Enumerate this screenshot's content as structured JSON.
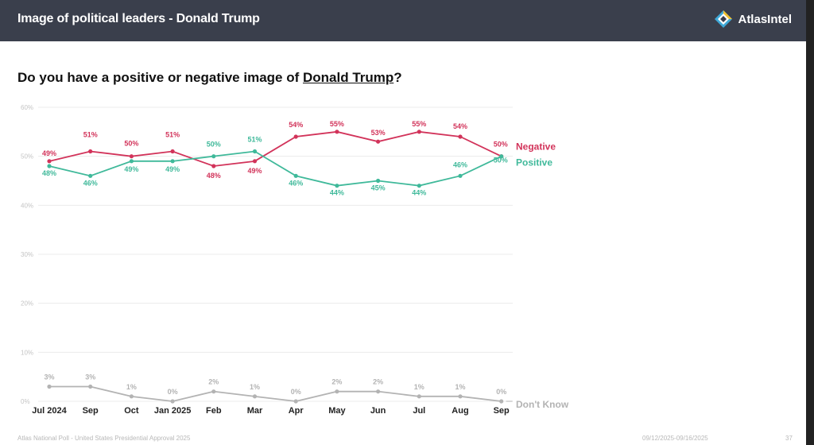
{
  "header": {
    "title": "Image of political leaders - Donald Trump"
  },
  "brand": {
    "name": "AtlasIntel"
  },
  "question": {
    "prefix": "Do you have a positive or negative image of ",
    "subject": "Donald Trump",
    "suffix": "?"
  },
  "colors": {
    "negative": "#d2335a",
    "positive": "#3fb99a",
    "dont_know": "#b3b3b3",
    "header_bg": "#3a3f4c"
  },
  "chart_data": {
    "type": "line",
    "categories": [
      "Jul 2024",
      "Sep",
      "Oct",
      "Jan 2025",
      "Feb",
      "Mar",
      "Apr",
      "May",
      "Jun",
      "Jul",
      "Aug",
      "Sep"
    ],
    "ylim": [
      0,
      60
    ],
    "yticks": [
      "0%",
      "10%",
      "20%",
      "30%",
      "40%",
      "50%",
      "60%"
    ],
    "grid": true,
    "series": [
      {
        "name": "Negative",
        "key": "negative",
        "values": [
          49,
          51,
          50,
          51,
          48,
          49,
          54,
          55,
          53,
          55,
          54,
          50
        ],
        "labels": [
          "49%",
          "51%",
          "50%",
          "51%",
          "48%",
          "49%",
          "54%",
          "55%",
          "53%",
          "55%",
          "54%",
          "50%"
        ]
      },
      {
        "name": "Positive",
        "key": "positive",
        "values": [
          48,
          46,
          49,
          49,
          50,
          51,
          46,
          44,
          45,
          44,
          46,
          50
        ],
        "labels": [
          "48%",
          "46%",
          "49%",
          "49%",
          "50%",
          "51%",
          "46%",
          "44%",
          "45%",
          "44%",
          "46%",
          "50%"
        ]
      },
      {
        "name": "Don't Know",
        "key": "dont_know",
        "values": [
          3,
          3,
          1,
          0,
          2,
          1,
          0,
          2,
          2,
          1,
          1,
          0
        ],
        "labels": [
          "3%",
          "3%",
          "1%",
          "0%",
          "2%",
          "1%",
          "0%",
          "2%",
          "2%",
          "1%",
          "1%",
          "0%"
        ]
      }
    ]
  },
  "footer": {
    "source": "Atlas National Poll - United States Presidential Approval 2025",
    "dates": "09/12/2025-09/16/2025",
    "page": "37"
  }
}
